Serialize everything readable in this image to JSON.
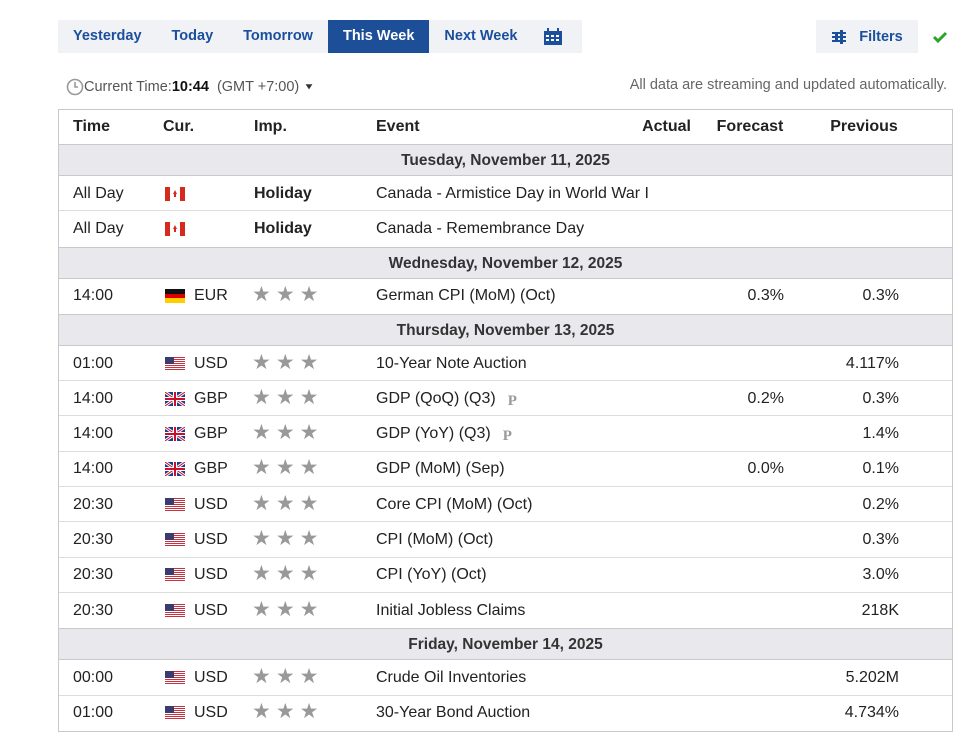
{
  "tabs": [
    {
      "label": "Yesterday"
    },
    {
      "label": "Today"
    },
    {
      "label": "Tomorrow"
    },
    {
      "label": "This Week",
      "active": true
    },
    {
      "label": "Next Week"
    }
  ],
  "filters_label": "Filters",
  "current_time": {
    "label": "Current Time:",
    "value": "10:44",
    "timezone": "(GMT +7:00)"
  },
  "streaming_note": "All data are streaming and updated automatically.",
  "table": {
    "columns": [
      "Time",
      "Cur.",
      "Imp.",
      "Event",
      "Actual",
      "Forecast",
      "Previous"
    ],
    "sections": [
      {
        "date": "Tuesday, November 11, 2025",
        "rows": [
          {
            "time": "All Day",
            "flag": "ca",
            "importance": "Holiday",
            "event": "Canada - Armistice Day in World War I"
          },
          {
            "time": "All Day",
            "flag": "ca",
            "importance": "Holiday",
            "event": "Canada - Remembrance Day"
          }
        ]
      },
      {
        "date": "Wednesday, November 12, 2025",
        "rows": [
          {
            "time": "14:00",
            "flag": "de",
            "currency": "EUR",
            "event": "German CPI (MoM) (Oct)",
            "forecast": "0.3%",
            "previous": "0.3%"
          }
        ]
      },
      {
        "date": "Thursday, November 13, 2025",
        "rows": [
          {
            "time": "01:00",
            "flag": "us",
            "currency": "USD",
            "event": "10-Year Note Auction",
            "previous": "4.117%"
          },
          {
            "time": "14:00",
            "flag": "gb",
            "currency": "GBP",
            "event": "GDP (QoQ) (Q3)",
            "preliminary": true,
            "forecast": "0.2%",
            "previous": "0.3%"
          },
          {
            "time": "14:00",
            "flag": "gb",
            "currency": "GBP",
            "event": "GDP (YoY) (Q3)",
            "preliminary": true,
            "previous": "1.4%"
          },
          {
            "time": "14:00",
            "flag": "gb",
            "currency": "GBP",
            "event": "GDP (MoM) (Sep)",
            "forecast": "0.0%",
            "previous": "0.1%"
          },
          {
            "time": "20:30",
            "flag": "us",
            "currency": "USD",
            "event": "Core CPI (MoM) (Oct)",
            "previous": "0.2%"
          },
          {
            "time": "20:30",
            "flag": "us",
            "currency": "USD",
            "event": "CPI (MoM) (Oct)",
            "previous": "0.3%"
          },
          {
            "time": "20:30",
            "flag": "us",
            "currency": "USD",
            "event": "CPI (YoY) (Oct)",
            "previous": "3.0%"
          },
          {
            "time": "20:30",
            "flag": "us",
            "currency": "USD",
            "event": "Initial Jobless Claims",
            "previous": "218K"
          }
        ]
      },
      {
        "date": "Friday, November 14, 2025",
        "rows": [
          {
            "time": "00:00",
            "flag": "us",
            "currency": "USD",
            "event": "Crude Oil Inventories",
            "previous": "5.202M"
          },
          {
            "time": "01:00",
            "flag": "us",
            "currency": "USD",
            "event": "30-Year Bond Auction",
            "previous": "4.734%"
          }
        ]
      }
    ]
  }
}
